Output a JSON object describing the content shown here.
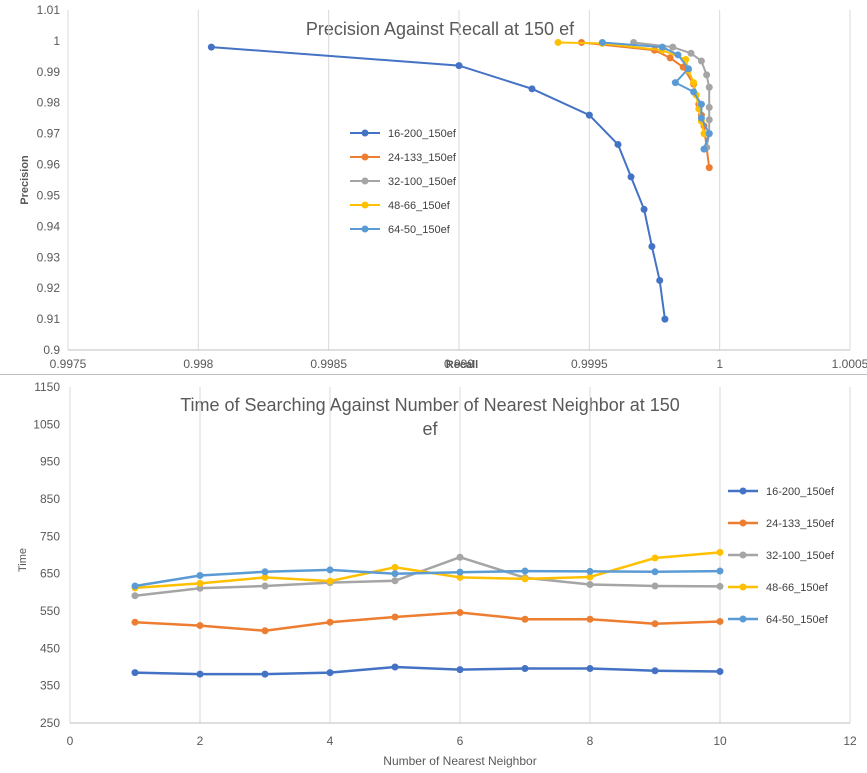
{
  "chart_data": [
    {
      "type": "scatter",
      "title": "Precision Against Recall at 150 ef",
      "xlabel": "Recall",
      "ylabel": "Precision",
      "xlim": [
        0.9975,
        1.0005
      ],
      "ylim": [
        0.9,
        1.01
      ],
      "x_ticks": [
        "0.9975",
        "0.998",
        "0.9985",
        "0.999",
        "0.9995",
        "1",
        "1.0005"
      ],
      "y_ticks": [
        "0.9",
        "0.91",
        "0.92",
        "0.93",
        "0.94",
        "0.95",
        "0.96",
        "0.97",
        "0.98",
        "0.99",
        "1",
        "1.01"
      ],
      "grid": "vertical",
      "legend_position": "center",
      "series": [
        {
          "name": "16-200_150ef",
          "color": "#4472C4",
          "x": [
            0.99805,
            0.999,
            0.99928,
            0.9995,
            0.99961,
            0.99966,
            0.99971,
            0.99974,
            0.99977,
            0.99979
          ],
          "y": [
            0.998,
            0.992,
            0.9845,
            0.976,
            0.9665,
            0.956,
            0.9455,
            0.9335,
            0.9225,
            0.91
          ]
        },
        {
          "name": "24-133_150ef",
          "color": "#ED7D31",
          "x": [
            0.99947,
            0.99975,
            0.99981,
            0.99986,
            0.9999,
            0.99992,
            0.99993,
            0.99994,
            0.99995,
            0.99996
          ],
          "y": [
            0.9995,
            0.997,
            0.9945,
            0.9915,
            0.986,
            0.9795,
            0.976,
            0.9725,
            0.9655,
            0.959
          ]
        },
        {
          "name": "32-100_150ef",
          "color": "#A5A5A5",
          "x": [
            0.99967,
            0.99982,
            0.99989,
            0.99993,
            0.99995,
            0.99996,
            0.99996,
            0.99996,
            0.99996,
            0.99995
          ],
          "y": [
            0.9995,
            0.998,
            0.996,
            0.9935,
            0.989,
            0.985,
            0.9785,
            0.9745,
            0.97,
            0.9655
          ]
        },
        {
          "name": "48-66_150ef",
          "color": "#FFC000",
          "x": [
            0.99938,
            0.99955,
            0.99978,
            0.99987,
            0.99988,
            0.9999,
            0.99991,
            0.99992,
            0.99993,
            0.99994
          ],
          "y": [
            0.9995,
            0.9992,
            0.997,
            0.994,
            0.9905,
            0.9865,
            0.9825,
            0.978,
            0.974,
            0.97
          ]
        },
        {
          "name": "64-50_150ef",
          "color": "#5B9BD5",
          "x": [
            0.99955,
            0.99978,
            0.99984,
            0.99988,
            0.99983,
            0.9999,
            0.99993,
            0.99993,
            0.99996,
            0.99994
          ],
          "y": [
            0.9995,
            0.998,
            0.9955,
            0.991,
            0.9865,
            0.9835,
            0.9795,
            0.975,
            0.97,
            0.965
          ]
        }
      ]
    },
    {
      "type": "line",
      "title": "Time of Searching Against Number of Nearest Neighbor at 150 ef",
      "xlabel": "Number of Nearest Neighbor",
      "ylabel": "Time",
      "xlim": [
        0,
        12
      ],
      "ylim": [
        250,
        1150
      ],
      "x_ticks": [
        "0",
        "2",
        "4",
        "6",
        "8",
        "10",
        "12"
      ],
      "y_ticks": [
        "250",
        "350",
        "450",
        "550",
        "650",
        "750",
        "850",
        "950",
        "1050",
        "1150"
      ],
      "grid": "vertical",
      "legend_position": "right",
      "x": [
        1,
        2,
        3,
        4,
        5,
        6,
        7,
        8,
        9,
        10
      ],
      "series": [
        {
          "name": "16-200_150ef",
          "color": "#4472C4",
          "values": [
            385,
            381,
            381,
            385,
            400,
            393,
            396,
            396,
            390,
            388
          ]
        },
        {
          "name": "24-133_150ef",
          "color": "#ED7D31",
          "values": [
            520,
            511,
            497,
            520,
            534,
            546,
            528,
            528,
            516,
            522
          ]
        },
        {
          "name": "32-100_150ef",
          "color": "#A5A5A5",
          "values": [
            591,
            611,
            617,
            626,
            631,
            694,
            639,
            621,
            617,
            616
          ]
        },
        {
          "name": "48-66_150ef",
          "color": "#FFC000",
          "values": [
            612,
            624,
            640,
            630,
            667,
            640,
            636,
            641,
            692,
            707
          ]
        },
        {
          "name": "64-50_150ef",
          "color": "#5B9BD5",
          "values": [
            617,
            645,
            655,
            660,
            650,
            654,
            657,
            656,
            655,
            657
          ]
        }
      ]
    }
  ]
}
